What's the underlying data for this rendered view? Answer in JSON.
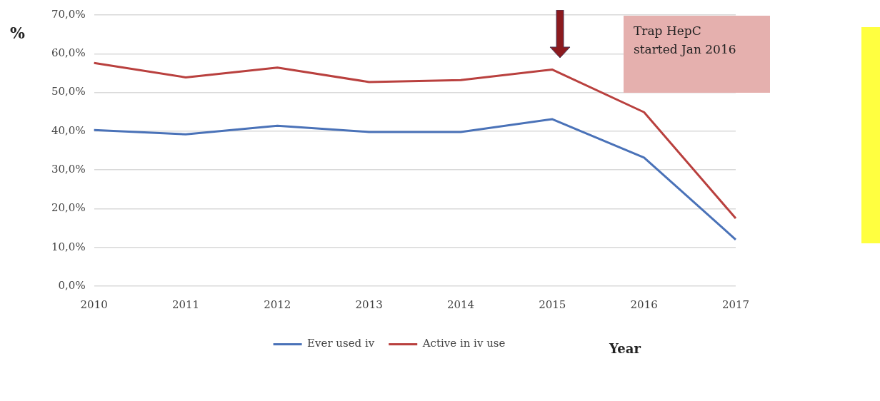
{
  "chart_data": {
    "type": "line",
    "categories": [
      "2010",
      "2011",
      "2012",
      "2013",
      "2014",
      "2015",
      "2016",
      "2017"
    ],
    "series": [
      {
        "name": "Ever used iv",
        "color": "#4a72b8",
        "values": [
          40.3,
          39.2,
          41.4,
          39.8,
          39.8,
          43.1,
          33.2,
          12.0
        ]
      },
      {
        "name": "Active in iv use",
        "color": "#b9403e",
        "values": [
          57.6,
          53.9,
          56.4,
          52.7,
          53.2,
          55.9,
          44.9,
          17.5
        ]
      }
    ],
    "ylabel": "%",
    "xlabel": "Year",
    "ylim": [
      0,
      70
    ],
    "yticks": [
      {
        "value": 0,
        "label": "0,0%"
      },
      {
        "value": 10,
        "label": "10,0%"
      },
      {
        "value": 20,
        "label": "20,0%"
      },
      {
        "value": 30,
        "label": "30,0%"
      },
      {
        "value": 40,
        "label": "40,0%"
      },
      {
        "value": 50,
        "label": "50,0%"
      },
      {
        "value": 60,
        "label": "60,0%"
      },
      {
        "value": 70,
        "label": "70,0%"
      }
    ],
    "grid": "y",
    "legend": "bottom",
    "marker": "none",
    "line_style": "solid",
    "annotations": [
      "Trap HepC started Jan 2016"
    ]
  }
}
